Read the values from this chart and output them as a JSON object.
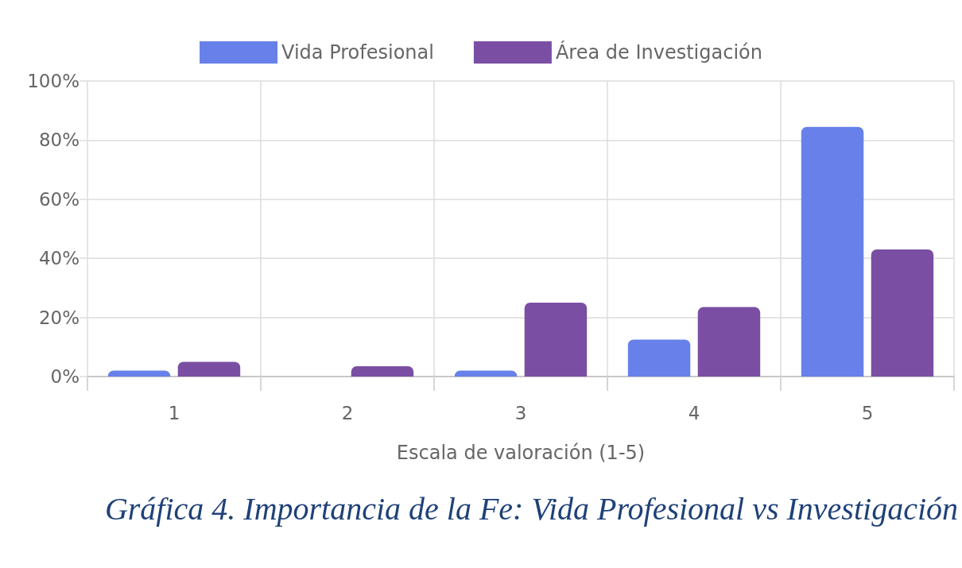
{
  "chart_data": {
    "type": "bar",
    "title": "Gráfica 4. Importancia de la Fe: Vida Profesional vs Investigación",
    "xlabel": "Escala de valoración (1-5)",
    "categories": [
      "1",
      "2",
      "3",
      "4",
      "5"
    ],
    "series": [
      {
        "name": "Vida Profesional",
        "color": "#6780ea",
        "values": [
          2,
          0,
          2,
          12.5,
          84.5
        ]
      },
      {
        "name": "Área de Investigación",
        "color": "#7a4fa3",
        "values": [
          5,
          3.5,
          25,
          23.5,
          43
        ]
      }
    ],
    "ylim": [
      0,
      100
    ],
    "yticks": [
      {
        "value": 0,
        "label": "0%"
      },
      {
        "value": 20,
        "label": "20%"
      },
      {
        "value": 40,
        "label": "40%"
      },
      {
        "value": 60,
        "label": "60%"
      },
      {
        "value": 80,
        "label": "80%"
      },
      {
        "value": 100,
        "label": "100%"
      }
    ],
    "grid": true,
    "legend": "top"
  }
}
